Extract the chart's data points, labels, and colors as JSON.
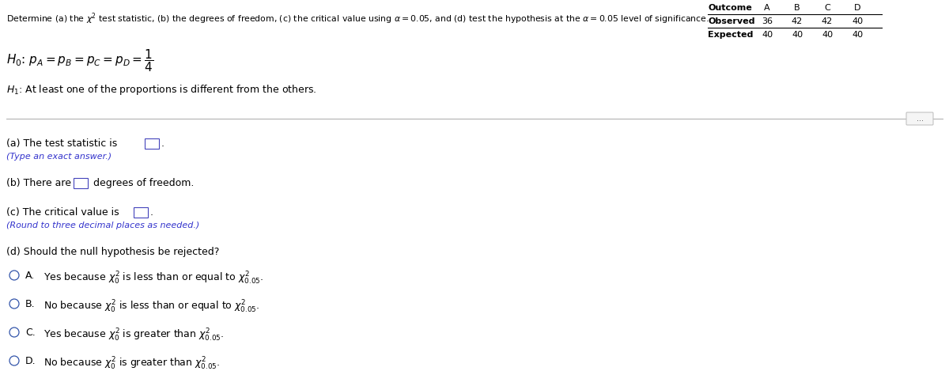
{
  "title": "Determine (a) the $\\chi^2$ test statistic, (b) the degrees of freedom, (c) the critical value using $\\alpha$ = 0.05, and (d) test the hypothesis at the $\\alpha$ = 0.05 level of significance.",
  "background": "#ffffff",
  "table_headers": [
    "Outcome",
    "A",
    "B",
    "C",
    "D"
  ],
  "table_row1_label": "Observed",
  "table_row1_vals": [
    "36",
    "42",
    "42",
    "40"
  ],
  "table_row2_label": "Expected",
  "table_row2_vals": [
    "40",
    "40",
    "40",
    "40"
  ],
  "text_color": "#000000",
  "blue_color": "#3333cc",
  "box_edge_color": "#4444bb",
  "separator_color": "#aaaaaa",
  "radio_color": "#3355aa",
  "fig_width": 12.0,
  "fig_height": 4.93,
  "dpi": 100
}
